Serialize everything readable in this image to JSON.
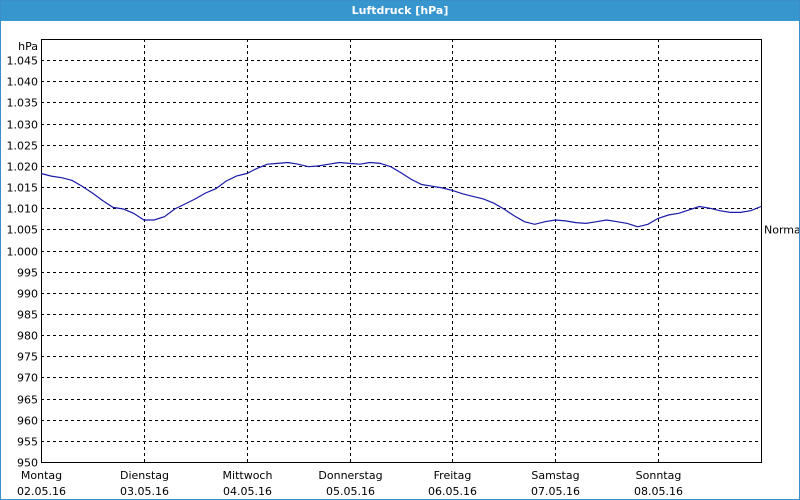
{
  "window": {
    "title": "Luftdruck [hPa]"
  },
  "chart_data": {
    "type": "line",
    "title": "Luftdruck [hPa]",
    "ylabel": "hPa",
    "xlabel": "",
    "ylim": [
      950,
      1050
    ],
    "y_ticks": [
      "950",
      "955",
      "960",
      "965",
      "970",
      "975",
      "980",
      "985",
      "990",
      "995",
      "1.000",
      "1.005",
      "1.010",
      "1.015",
      "1.020",
      "1.025",
      "1.030",
      "1.035",
      "1.040",
      "1.045"
    ],
    "x_range_days": [
      0,
      7
    ],
    "x_ticks": [
      {
        "day": "Montag",
        "date": "02.05.16"
      },
      {
        "day": "Dienstag",
        "date": "03.05.16"
      },
      {
        "day": "Mittwoch",
        "date": "04.05.16"
      },
      {
        "day": "Donnerstag",
        "date": "05.05.16"
      },
      {
        "day": "Freitag",
        "date": "06.05.16"
      },
      {
        "day": "Samstag",
        "date": "07.05.16"
      },
      {
        "day": "Sonntag",
        "date": "08.05.16"
      }
    ],
    "grid": true,
    "series": [
      {
        "color": "#1a1aa8",
        "x": [
          0.0,
          0.1,
          0.2,
          0.3,
          0.4,
          0.5,
          0.6,
          0.7,
          0.8,
          0.9,
          1.0,
          1.1,
          1.2,
          1.3,
          1.4,
          1.5,
          1.6,
          1.7,
          1.8,
          1.9,
          2.0,
          2.1,
          2.2,
          2.3,
          2.4,
          2.5,
          2.6,
          2.7,
          2.8,
          2.9,
          3.0,
          3.1,
          3.2,
          3.3,
          3.4,
          3.5,
          3.6,
          3.7,
          3.8,
          3.9,
          4.0,
          4.1,
          4.2,
          4.3,
          4.4,
          4.5,
          4.6,
          4.7,
          4.8,
          4.9,
          5.0,
          5.1,
          5.2,
          5.3,
          5.4,
          5.5,
          5.6,
          5.7,
          5.8,
          5.9,
          6.0,
          6.1,
          6.2,
          6.3,
          6.4,
          6.5,
          6.6,
          6.7,
          6.8,
          6.9,
          7.0
        ],
        "y": [
          1018.2,
          1017.6,
          1017.2,
          1016.6,
          1015.2,
          1013.6,
          1011.8,
          1010.2,
          1009.8,
          1008.8,
          1007.2,
          1007.2,
          1008.0,
          1009.8,
          1011.0,
          1012.2,
          1013.6,
          1014.6,
          1016.4,
          1017.6,
          1018.2,
          1019.4,
          1020.4,
          1020.6,
          1020.8,
          1020.4,
          1019.8,
          1020.0,
          1020.4,
          1020.8,
          1020.6,
          1020.4,
          1020.8,
          1020.6,
          1019.8,
          1018.4,
          1016.8,
          1015.6,
          1015.2,
          1014.8,
          1014.2,
          1013.4,
          1012.8,
          1012.2,
          1011.2,
          1009.8,
          1008.2,
          1006.8,
          1006.2,
          1006.8,
          1007.2,
          1007.0,
          1006.6,
          1006.4,
          1006.8,
          1007.2,
          1006.8,
          1006.4,
          1005.6,
          1006.2,
          1007.6,
          1008.4,
          1008.8,
          1009.6,
          1010.4,
          1010.0,
          1009.4,
          1009.0,
          1009.0,
          1009.4,
          1010.4
        ]
      }
    ],
    "annotations": [
      {
        "text": "Normal",
        "y": 1005
      }
    ]
  }
}
